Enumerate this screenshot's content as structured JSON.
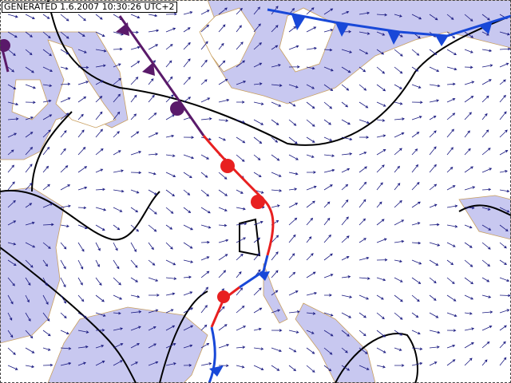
{
  "header": {
    "label": "GENERATED 1.6.2007 10:30:26 UTC+2"
  }
}
